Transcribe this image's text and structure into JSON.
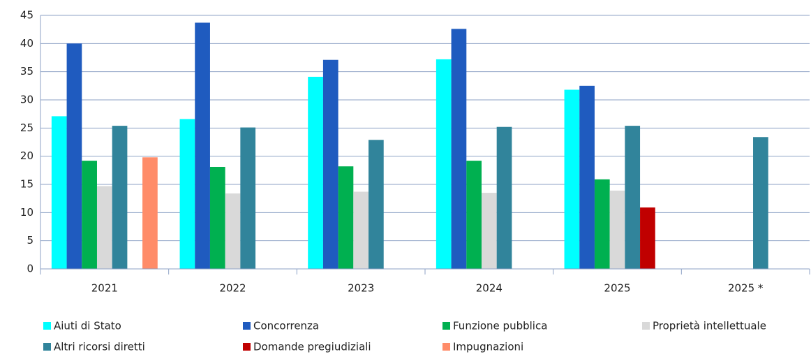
{
  "chart_data": {
    "type": "bar",
    "categories": [
      "2021",
      "2022",
      "2023",
      "2024",
      "2025",
      "2025 *"
    ],
    "series": [
      {
        "name": "Aiuti di Stato",
        "color": "#00ffff",
        "values": [
          27.1,
          26.6,
          34.1,
          37.2,
          31.8,
          null
        ]
      },
      {
        "name": "Concorrenza",
        "color": "#1f5bbf",
        "values": [
          40.0,
          43.7,
          37.1,
          42.6,
          32.5,
          null
        ]
      },
      {
        "name": "Funzione pubblica",
        "color": "#00b050",
        "values": [
          19.2,
          18.1,
          18.2,
          19.2,
          15.9,
          null
        ]
      },
      {
        "name": "Proprietà intellettuale",
        "color": "#d9d9d9",
        "values": [
          14.7,
          13.4,
          13.7,
          13.5,
          13.9,
          null
        ]
      },
      {
        "name": "Altri ricorsi diretti",
        "color": "#31849b",
        "values": [
          25.4,
          25.1,
          22.9,
          25.2,
          25.4,
          23.4
        ]
      },
      {
        "name": "Domande pregiudiziali",
        "color": "#c00000",
        "values": [
          null,
          null,
          null,
          null,
          10.9,
          null
        ]
      },
      {
        "name": "Impugnazioni",
        "color": "#ff8c69",
        "values": [
          19.8,
          null,
          null,
          null,
          null,
          null
        ]
      }
    ],
    "ylim": [
      0,
      45
    ],
    "yticks": [
      0,
      5,
      10,
      15,
      20,
      25,
      30,
      35,
      40,
      45
    ],
    "grid": true,
    "legend": "bottom"
  }
}
